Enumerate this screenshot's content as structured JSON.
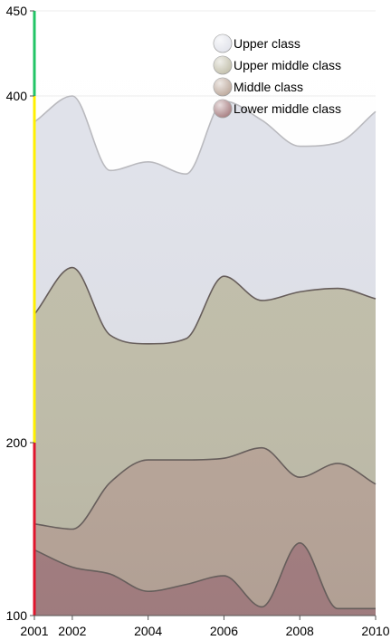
{
  "chart_data": {
    "type": "area",
    "stacked": true,
    "title": "",
    "xlabel": "",
    "ylabel": "",
    "x": [
      2001,
      2002,
      2003,
      2004,
      2005,
      2006,
      2007,
      2008,
      2009,
      2010
    ],
    "x_tick_labels": [
      "2001",
      "2002",
      "2004",
      "2006",
      "2008",
      "2010"
    ],
    "y_tick_labels": [
      "100",
      "200",
      "400",
      "450"
    ],
    "ylim": [
      100,
      450
    ],
    "grid": true,
    "legend_position": "top-right",
    "series": [
      {
        "name": "Lower middle class",
        "color": "#a3787b",
        "values": [
          138,
          128,
          124,
          114,
          118,
          123,
          105,
          142,
          104,
          104
        ]
      },
      {
        "name": "Middle class",
        "color": "#b9a496",
        "values": [
          153,
          150,
          177,
          190,
          190,
          191,
          197,
          180,
          188,
          176
        ]
      },
      {
        "name": "Upper middle class",
        "color": "#c0bda8",
        "values": [
          274,
          301,
          262,
          257,
          260,
          296,
          282,
          287,
          289,
          283
        ]
      },
      {
        "name": "Upper class",
        "color": "#e0e2ea",
        "values": [
          385,
          400,
          357,
          362,
          355,
          397,
          386,
          371,
          373,
          391
        ]
      }
    ],
    "axis_colors": {
      "low": "#e0152c",
      "mid": "#fff000",
      "high": "#22c466"
    }
  }
}
